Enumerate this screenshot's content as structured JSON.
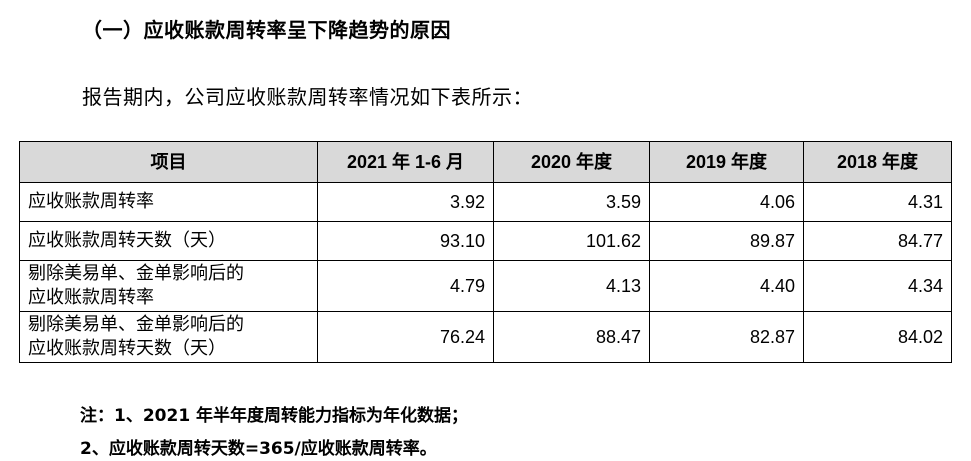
{
  "heading": "（一）应收账款周转率呈下降趋势的原因",
  "intro": "报告期内，公司应收账款周转率情况如下表所示：",
  "table": {
    "headers": [
      "项目",
      "2021 年 1-6 月",
      "2020 年度",
      "2019 年度",
      "2018 年度"
    ],
    "rows": [
      {
        "label_line1": "应收账款周转率",
        "label_line2": "",
        "values": [
          "3.92",
          "3.59",
          "4.06",
          "4.31"
        ]
      },
      {
        "label_line1": "应收账款周转天数（天）",
        "label_line2": "",
        "values": [
          "93.10",
          "101.62",
          "89.87",
          "84.77"
        ]
      },
      {
        "label_line1": "剔除美易单、金单影响后的",
        "label_line2": "应收账款周转率",
        "values": [
          "4.79",
          "4.13",
          "4.40",
          "4.34"
        ]
      },
      {
        "label_line1": "剔除美易单、金单影响后的",
        "label_line2": "应收账款周转天数（天）",
        "values": [
          "76.24",
          "88.47",
          "82.87",
          "84.02"
        ]
      }
    ]
  },
  "notes": {
    "note1": "注：1、2021 年半年度周转能力指标为年化数据；",
    "note2": "2、应收账款周转天数=365/应收账款周转率。"
  }
}
